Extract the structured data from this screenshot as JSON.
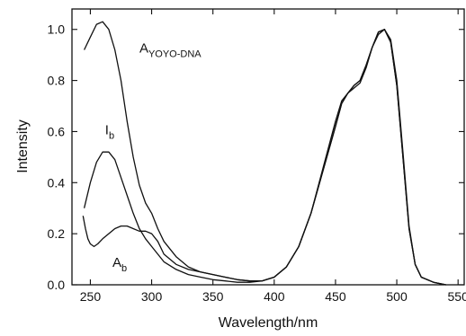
{
  "chart_data": {
    "type": "line",
    "title": "",
    "xlabel": "Wavelength/nm",
    "ylabel": "Intensity",
    "xlim": [
      235,
      555
    ],
    "ylim": [
      0,
      1.08
    ],
    "x_ticks": [
      250,
      300,
      350,
      400,
      450,
      500,
      550
    ],
    "y_ticks": [
      0.0,
      0.2,
      0.4,
      0.6,
      0.8,
      1.0
    ],
    "x_tick_labels": [
      "250",
      "300",
      "350",
      "400",
      "450",
      "500",
      "550"
    ],
    "y_tick_labels": [
      "0.0",
      "0.2",
      "0.4",
      "0.6",
      "0.8",
      "1.0"
    ],
    "grid": false,
    "legend": "none",
    "annotations": [
      {
        "id": "A_YOYO_DNA",
        "main": "A",
        "sub": "YOYO-DNA",
        "x": 290,
        "y": 0.91
      },
      {
        "id": "I_b",
        "main": "I",
        "sub": "b",
        "x": 262,
        "y": 0.59
      },
      {
        "id": "A_b",
        "main": "A",
        "sub": "b",
        "x": 268,
        "y": 0.07
      }
    ],
    "series": [
      {
        "x": [
          245,
          250,
          255,
          260,
          265,
          270,
          275,
          280,
          285,
          290,
          295,
          300,
          305,
          310,
          320,
          330,
          340,
          350,
          360,
          370,
          380,
          390,
          400,
          410,
          420,
          430,
          440,
          450,
          455,
          460,
          465,
          470,
          475,
          480,
          485,
          490,
          495,
          500,
          505,
          510,
          515,
          520,
          530,
          540
        ],
        "y": [
          0.92,
          0.97,
          1.02,
          1.03,
          1.0,
          0.92,
          0.8,
          0.64,
          0.5,
          0.39,
          0.32,
          0.28,
          0.22,
          0.17,
          0.11,
          0.07,
          0.05,
          0.04,
          0.03,
          0.02,
          0.015,
          0.015,
          0.03,
          0.07,
          0.15,
          0.28,
          0.45,
          0.62,
          0.71,
          0.75,
          0.78,
          0.8,
          0.86,
          0.93,
          0.99,
          1.0,
          0.95,
          0.78,
          0.5,
          0.22,
          0.08,
          0.03,
          0.01,
          0.0
        ]
      },
      {
        "x": [
          245,
          250,
          255,
          260,
          265,
          270,
          275,
          280,
          285,
          290,
          295,
          300,
          305,
          310,
          320,
          330,
          340,
          350,
          360,
          370,
          380,
          390,
          400,
          410,
          420,
          430,
          440,
          450,
          455,
          460,
          465,
          470,
          475,
          480,
          485,
          490,
          495,
          500,
          505,
          510,
          515,
          520,
          530,
          540
        ],
        "y": [
          0.3,
          0.4,
          0.48,
          0.52,
          0.52,
          0.49,
          0.42,
          0.35,
          0.28,
          0.22,
          0.18,
          0.15,
          0.12,
          0.09,
          0.06,
          0.04,
          0.03,
          0.02,
          0.015,
          0.01,
          0.01,
          0.015,
          0.03,
          0.07,
          0.15,
          0.28,
          0.46,
          0.64,
          0.72,
          0.75,
          0.77,
          0.79,
          0.85,
          0.93,
          0.98,
          1.0,
          0.96,
          0.8,
          0.52,
          0.23,
          0.08,
          0.03,
          0.01,
          0.0
        ]
      },
      {
        "x": [
          244,
          246,
          248,
          250,
          253,
          256,
          260,
          265,
          270,
          275,
          280,
          285,
          290,
          295,
          300,
          305,
          310,
          320,
          330,
          340,
          350,
          360,
          370,
          380,
          390,
          400,
          410,
          420,
          430,
          440,
          450,
          455,
          460,
          465,
          470,
          475,
          480,
          485,
          490,
          495,
          500,
          505,
          510,
          515,
          520,
          530,
          540
        ],
        "y": [
          0.27,
          0.22,
          0.18,
          0.16,
          0.15,
          0.16,
          0.18,
          0.2,
          0.22,
          0.23,
          0.23,
          0.22,
          0.21,
          0.21,
          0.2,
          0.17,
          0.12,
          0.08,
          0.06,
          0.05,
          0.04,
          0.03,
          0.02,
          0.015,
          0.015,
          0.03,
          0.07,
          0.15,
          0.28,
          0.45,
          0.62,
          0.71,
          0.75,
          0.78,
          0.8,
          0.86,
          0.93,
          0.99,
          1.0,
          0.95,
          0.78,
          0.5,
          0.22,
          0.08,
          0.03,
          0.01,
          0.0
        ]
      }
    ]
  }
}
